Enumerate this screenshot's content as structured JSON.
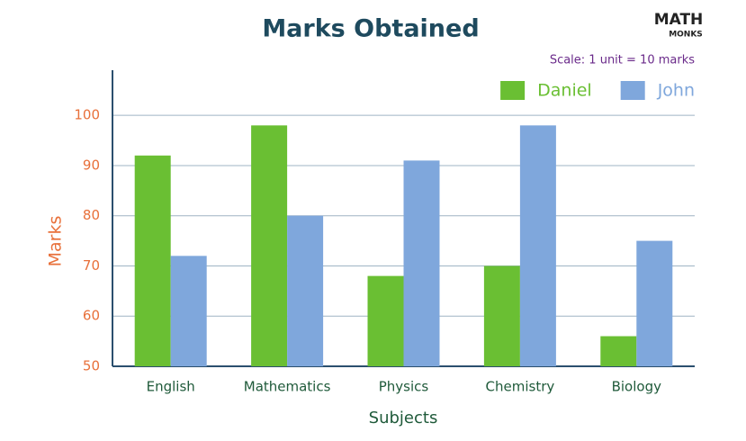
{
  "logo": {
    "top": "MATH",
    "bottom": "MONKS"
  },
  "chart_data": {
    "type": "bar",
    "title": "Marks Obtained",
    "annotation": "Scale: 1 unit = 10 marks",
    "x_label": "Subjects",
    "y_label": "Marks",
    "categories": [
      "English",
      "Mathematics",
      "Physics",
      "Chemistry",
      "Biology"
    ],
    "series": [
      {
        "name": "Daniel",
        "color": "#6abf33",
        "values": [
          92,
          98,
          68,
          70,
          56
        ]
      },
      {
        "name": "John",
        "color": "#7fa7dc",
        "values": [
          72,
          80,
          91,
          98,
          75
        ]
      }
    ],
    "ylim": [
      50,
      109
    ],
    "yticks": [
      50,
      60,
      70,
      80,
      90,
      100
    ],
    "grid": true,
    "legend": "top-right"
  }
}
